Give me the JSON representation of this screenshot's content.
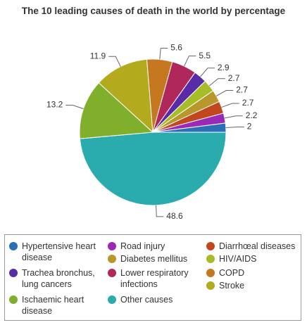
{
  "chart_data": {
    "type": "pie",
    "title": "The 10 leading causes of death in the world by percentage",
    "categories": [
      "Other causes",
      "Ischaemic heart disease",
      "Stroke",
      "COPD",
      "Lower respiratory infections",
      "Trachea bronchus, lung cancers",
      "HIV/AIDS",
      "Diabetes mellitus",
      "Diarrhœal diseases",
      "Road injury",
      "Hypertensive heart disease"
    ],
    "values": [
      48.6,
      13.2,
      11.9,
      5.6,
      5.5,
      2.9,
      2.7,
      2.7,
      2.7,
      2.2,
      2
    ],
    "colors": [
      "#2aabae",
      "#7faf2b",
      "#b3aa1d",
      "#c5781f",
      "#b0285a",
      "#5a2ba6",
      "#a6bd28",
      "#b8982a",
      "#c2471e",
      "#9a2ab6",
      "#2b6fb6"
    ]
  }
}
